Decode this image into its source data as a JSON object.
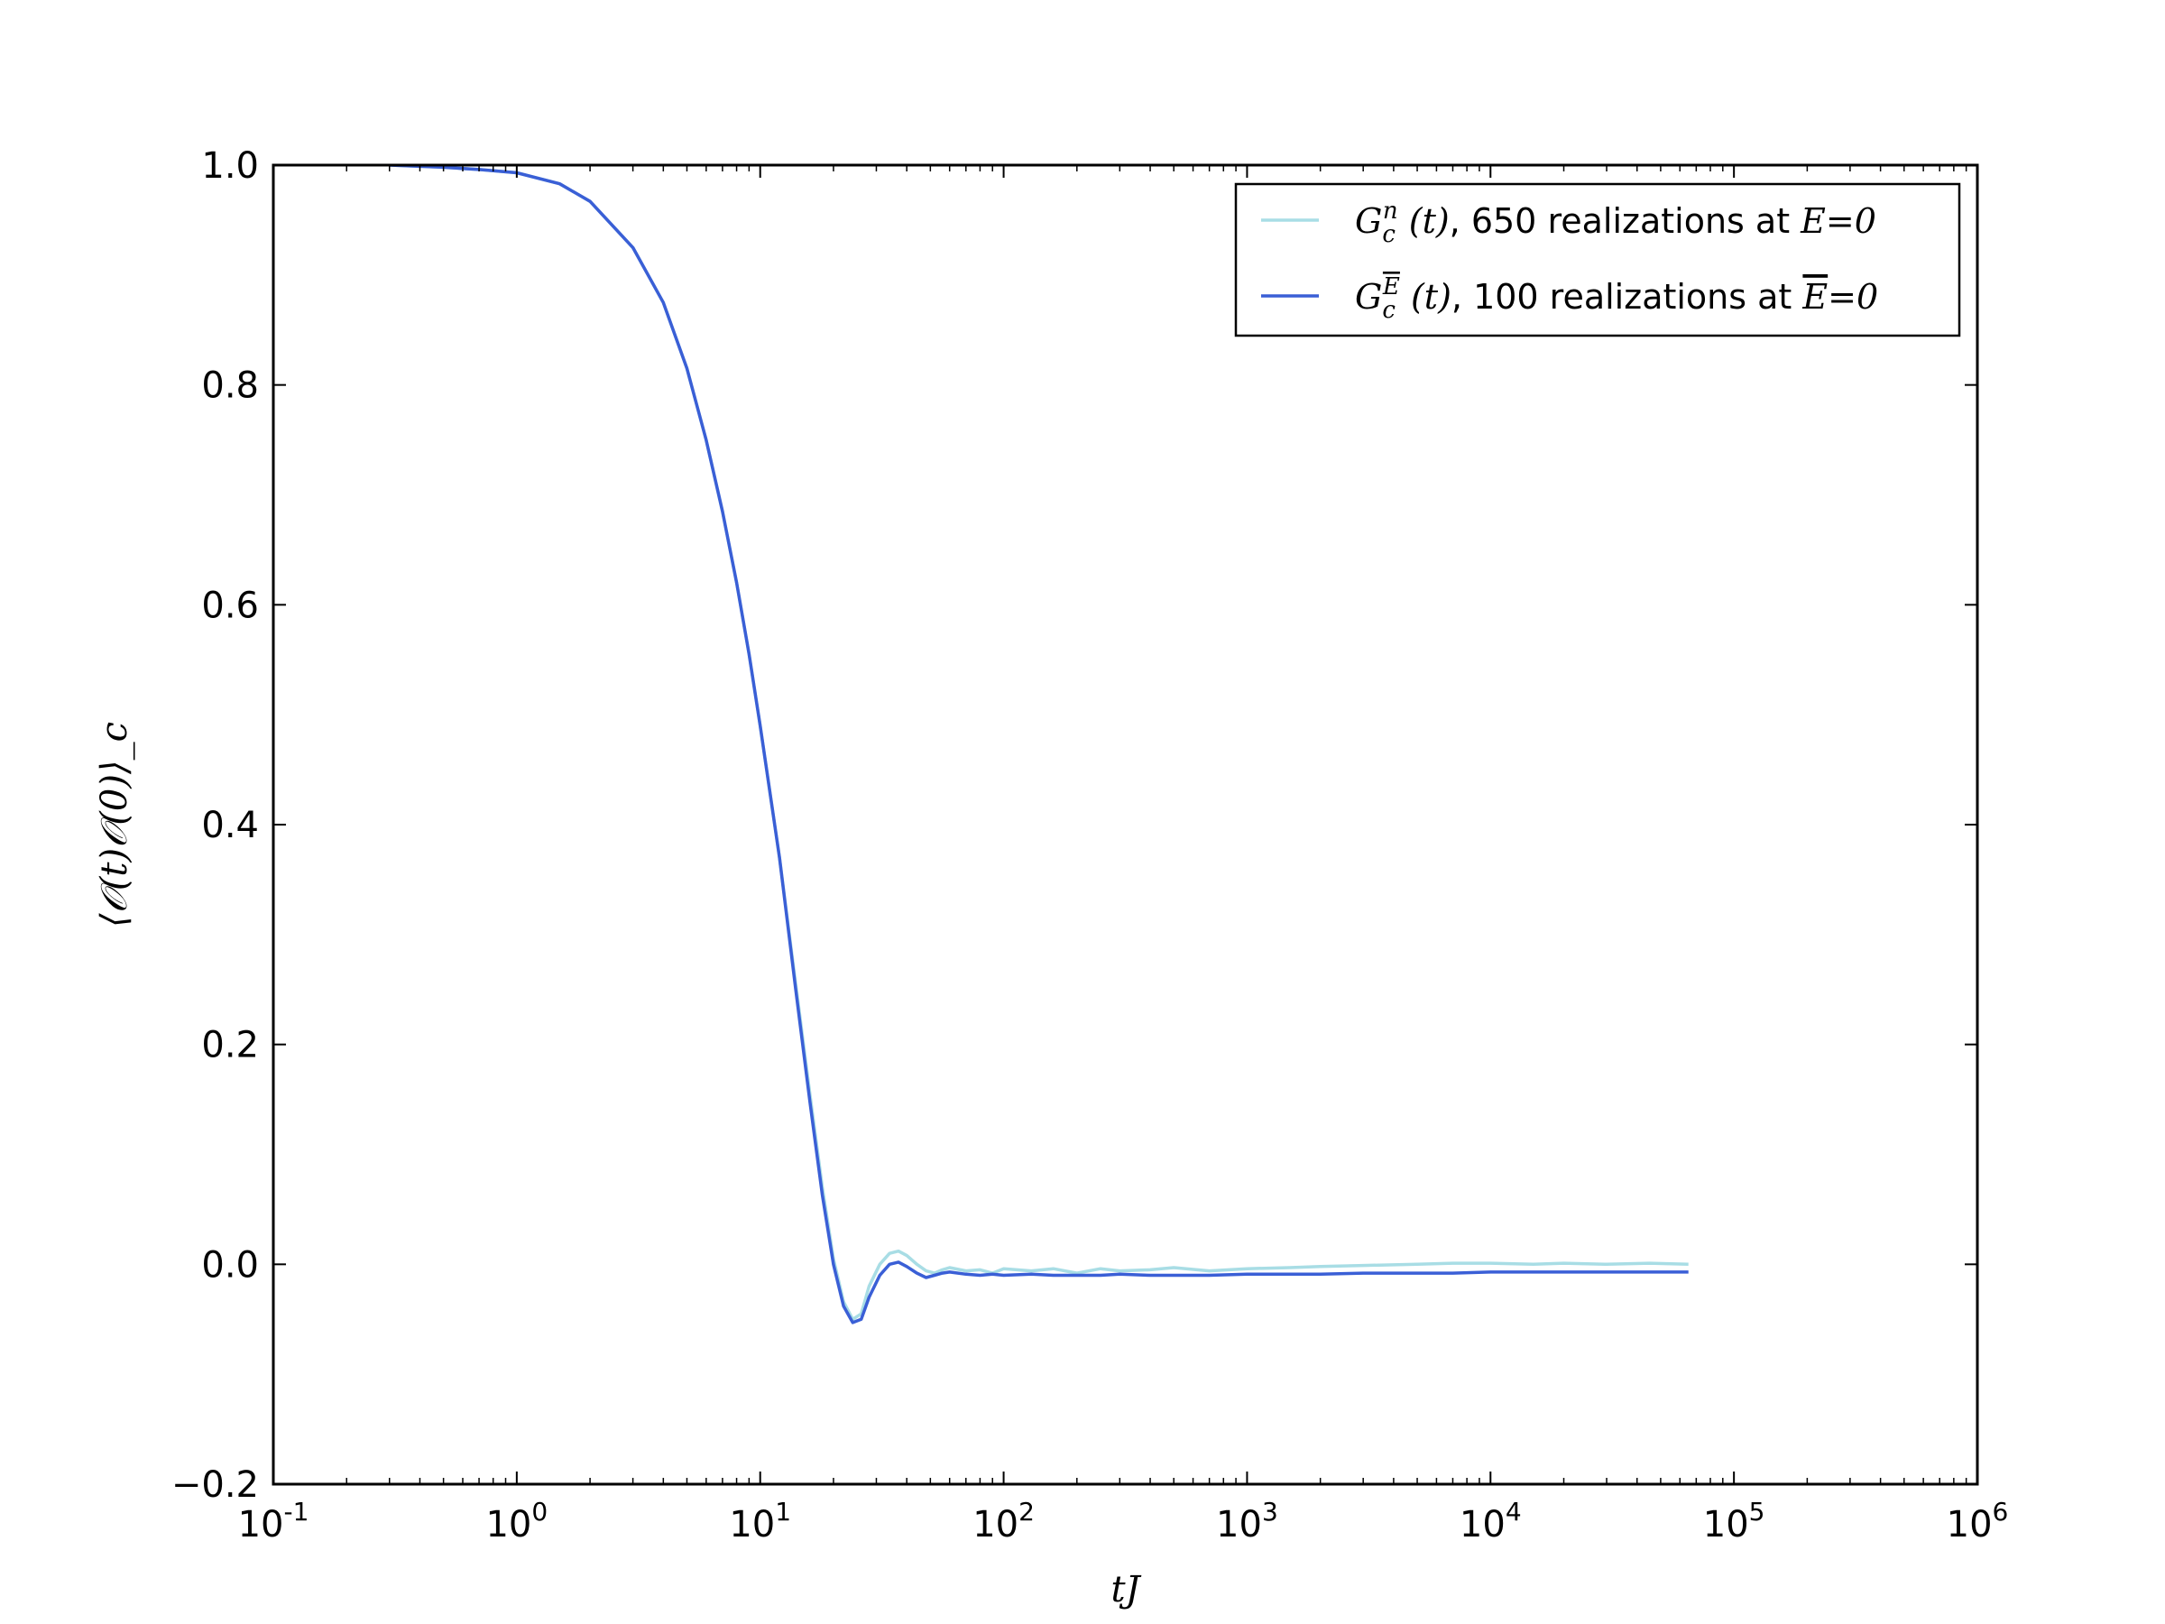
{
  "chart_data": {
    "type": "line",
    "title": "",
    "xlabel": "tJ",
    "ylabel": "⟨𝒪(t)𝒪(0)⟩_c",
    "xscale": "log",
    "xlim": [
      0.1,
      1000000
    ],
    "ylim": [
      -0.2,
      1.0
    ],
    "x_ticks": [
      {
        "base": "10",
        "exp": "-1"
      },
      {
        "base": "10",
        "exp": "0"
      },
      {
        "base": "10",
        "exp": "1"
      },
      {
        "base": "10",
        "exp": "2"
      },
      {
        "base": "10",
        "exp": "3"
      },
      {
        "base": "10",
        "exp": "4"
      },
      {
        "base": "10",
        "exp": "5"
      },
      {
        "base": "10",
        "exp": "6"
      }
    ],
    "y_ticks": [
      "−0.2",
      "0.0",
      "0.2",
      "0.4",
      "0.6",
      "0.8",
      "1.0"
    ],
    "grid": false,
    "legend_position": "top-right",
    "series": [
      {
        "name": "G_c^n (t), 650 realizations at E=0",
        "legend": {
          "sym": "G",
          "sub": "c",
          "sup": "n",
          "arg": "(t)",
          "text": ", 650 realizations at ",
          "cond": "E",
          "eq": "=0"
        },
        "color": "#a8dde5",
        "x": [
          0.3,
          0.5,
          0.7,
          1.0,
          1.5,
          2.0,
          3.0,
          4.0,
          5.0,
          6.0,
          7.0,
          8.0,
          9.0,
          10.0,
          12.0,
          14.0,
          16.0,
          18.0,
          20.0,
          22.0,
          24.0,
          26.0,
          28.0,
          31.0,
          34.0,
          37.0,
          40.0,
          44.0,
          48.0,
          52.0,
          56.0,
          60.0,
          70.0,
          80.0,
          90.0,
          100.0,
          130.0,
          160.0,
          200.0,
          250.0,
          300.0,
          400.0,
          500.0,
          700.0,
          1000.0,
          1500.0,
          2000.0,
          3000.0,
          5000.0,
          7000.0,
          10000.0,
          15000.0,
          20000.0,
          30000.0,
          45000.0,
          65000.0
        ],
        "y": [
          1.0,
          0.998,
          0.996,
          0.993,
          0.983,
          0.967,
          0.925,
          0.875,
          0.815,
          0.75,
          0.685,
          0.62,
          0.555,
          0.49,
          0.37,
          0.255,
          0.155,
          0.07,
          0.005,
          -0.034,
          -0.05,
          -0.045,
          -0.02,
          0.0,
          0.01,
          0.012,
          0.008,
          0.0,
          -0.006,
          -0.008,
          -0.005,
          -0.003,
          -0.006,
          -0.005,
          -0.008,
          -0.004,
          -0.006,
          -0.004,
          -0.008,
          -0.004,
          -0.006,
          -0.005,
          -0.003,
          -0.006,
          -0.004,
          -0.003,
          -0.002,
          -0.001,
          0.0,
          0.001,
          0.001,
          0.0,
          0.001,
          0.0,
          0.001,
          0.0
        ]
      },
      {
        "name": "G_c^Ē(t), 100 realizations at Ē=0",
        "legend": {
          "sym": "G",
          "sub": "c",
          "sup": "E",
          "arg": "(t)",
          "text": ", 100 realizations at ",
          "cond": "E",
          "eq": "=0"
        },
        "color": "#3a5fd6",
        "x": [
          0.3,
          0.5,
          0.7,
          1.0,
          1.5,
          2.0,
          3.0,
          4.0,
          5.0,
          6.0,
          7.0,
          8.0,
          9.0,
          10.0,
          12.0,
          14.0,
          16.0,
          18.0,
          20.0,
          22.0,
          24.0,
          26.0,
          28.0,
          31.0,
          34.0,
          37.0,
          40.0,
          44.0,
          48.0,
          52.0,
          56.0,
          60.0,
          70.0,
          80.0,
          90.0,
          100.0,
          130.0,
          160.0,
          200.0,
          250.0,
          300.0,
          400.0,
          500.0,
          700.0,
          1000.0,
          1500.0,
          2000.0,
          3000.0,
          5000.0,
          7000.0,
          10000.0,
          15000.0,
          20000.0,
          30000.0,
          45000.0,
          65000.0
        ],
        "y": [
          1.0,
          0.998,
          0.996,
          0.993,
          0.983,
          0.967,
          0.925,
          0.875,
          0.815,
          0.75,
          0.685,
          0.62,
          0.555,
          0.49,
          0.37,
          0.25,
          0.148,
          0.063,
          0.0,
          -0.038,
          -0.053,
          -0.05,
          -0.03,
          -0.01,
          0.0,
          0.002,
          -0.002,
          -0.008,
          -0.012,
          -0.01,
          -0.008,
          -0.007,
          -0.009,
          -0.01,
          -0.009,
          -0.01,
          -0.009,
          -0.01,
          -0.01,
          -0.01,
          -0.009,
          -0.01,
          -0.01,
          -0.01,
          -0.009,
          -0.009,
          -0.009,
          -0.008,
          -0.008,
          -0.008,
          -0.007,
          -0.007,
          -0.007,
          -0.007,
          -0.007,
          -0.007
        ]
      }
    ]
  }
}
